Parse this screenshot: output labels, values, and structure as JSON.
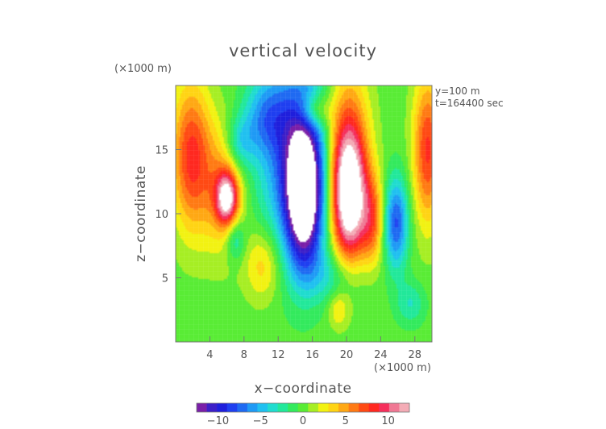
{
  "chart_data": {
    "type": "heatmap",
    "title": "vertical velocity",
    "xlabel": "x−coordinate",
    "ylabel": "z−coordinate",
    "x_unit": "(×1000 m)",
    "y_unit": "(×1000 m)",
    "annotations": [
      "y=100 m",
      "t=164400 sec"
    ],
    "xlim": [
      0,
      30
    ],
    "ylim": [
      0,
      20
    ],
    "x_ticks": [
      4,
      8,
      12,
      16,
      20,
      24,
      28
    ],
    "y_ticks": [
      5,
      10,
      15
    ],
    "x_tick_labels": [
      "4",
      "8",
      "12",
      "16",
      "20",
      "24",
      "28"
    ],
    "y_tick_labels": [
      "5",
      "10",
      "15"
    ],
    "colorbar": {
      "range": [
        -12.5,
        12.5
      ],
      "ticks": [
        -10,
        -5,
        0,
        5,
        10
      ],
      "tick_labels": [
        "−10",
        "−5",
        "0",
        "5",
        "10"
      ],
      "colors": [
        "#7a1fa8",
        "#3d1fc8",
        "#1f1fdc",
        "#1f3ff0",
        "#1f6af2",
        "#1f9af5",
        "#20c0f0",
        "#20dccf",
        "#22e89a",
        "#33ea5d",
        "#59ec35",
        "#a6ee24",
        "#f2f212",
        "#ffd414",
        "#ffa814",
        "#ff7a14",
        "#ff4a14",
        "#ff2820",
        "#f52f5c",
        "#f07894",
        "#f4acb6"
      ]
    },
    "features": [
      {
        "x": 15.0,
        "z": 11.3,
        "value": -14,
        "sx": 1.5,
        "sz": 3.8
      },
      {
        "x": 14.2,
        "z": 15.0,
        "value": -8,
        "sx": 3.2,
        "sz": 5.5
      },
      {
        "x": 25.8,
        "z": 9.3,
        "value": -8,
        "sx": 1.0,
        "sz": 2.5
      },
      {
        "x": 10.5,
        "z": 17.5,
        "value": -4,
        "sx": 1.8,
        "sz": 2.0
      },
      {
        "x": 7.5,
        "z": 15.5,
        "value": -4,
        "sx": 1.2,
        "sz": 1.5
      },
      {
        "x": 7.0,
        "z": 8.0,
        "value": -4,
        "sx": 0.8,
        "sz": 1.2
      },
      {
        "x": 18.7,
        "z": 5.2,
        "value": -3,
        "sx": 2.5,
        "sz": 1.5
      },
      {
        "x": 27.5,
        "z": 3.0,
        "value": -3,
        "sx": 1.2,
        "sz": 1.2
      },
      {
        "x": 20.3,
        "z": 11.0,
        "value": 13,
        "sx": 1.4,
        "sz": 3.5
      },
      {
        "x": 20.0,
        "z": 15.0,
        "value": 8,
        "sx": 1.8,
        "sz": 4.5
      },
      {
        "x": 6.0,
        "z": 11.2,
        "value": 11,
        "sx": 0.9,
        "sz": 1.4
      },
      {
        "x": 5.5,
        "z": 12.0,
        "value": 5,
        "sx": 1.8,
        "sz": 3.5
      },
      {
        "x": 1.8,
        "z": 14.5,
        "value": 8,
        "sx": 1.6,
        "sz": 4.0
      },
      {
        "x": 29.5,
        "z": 15.0,
        "value": 8,
        "sx": 1.2,
        "sz": 4.0
      },
      {
        "x": 23.0,
        "z": 9.5,
        "value": 6,
        "sx": 1.0,
        "sz": 2.5
      },
      {
        "x": 16.3,
        "z": 18.0,
        "value": 5,
        "sx": 1.2,
        "sz": 1.0
      },
      {
        "x": 10.2,
        "z": 6.0,
        "value": 4,
        "sx": 1.5,
        "sz": 2.0
      },
      {
        "x": 19.0,
        "z": 2.5,
        "value": 3,
        "sx": 0.8,
        "sz": 1.0
      }
    ]
  }
}
